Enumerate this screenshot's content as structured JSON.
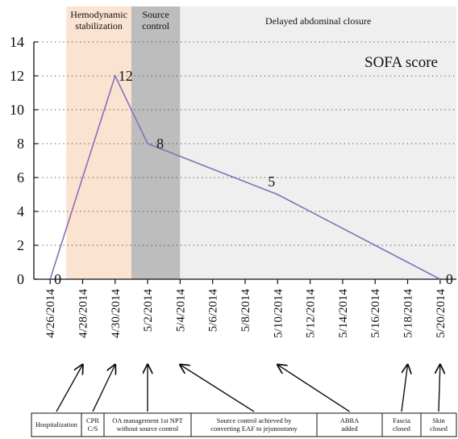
{
  "chart_data": {
    "type": "line",
    "series": [
      {
        "name": "SOFA score",
        "points": [
          {
            "x": "4/26/2014",
            "y": 0,
            "label": "0"
          },
          {
            "x": "4/30/2014",
            "y": 12,
            "label": "12"
          },
          {
            "x": "5/2/2014",
            "y": 8,
            "label": "8"
          },
          {
            "x": "5/10/2014",
            "y": 5,
            "label": "5"
          },
          {
            "x": "5/20/2014",
            "y": 0,
            "label": "0"
          }
        ]
      }
    ],
    "x_ticks": [
      "4/26/2014",
      "4/28/2014",
      "4/30/2014",
      "5/2/2014",
      "5/4/2014",
      "5/6/2014",
      "5/8/2014",
      "5/10/2014",
      "5/12/2014",
      "5/14/2014",
      "5/16/2014",
      "5/18/2014",
      "5/20/2014"
    ],
    "ylim": [
      0,
      14
    ],
    "y_ticks": [
      0,
      2,
      4,
      6,
      8,
      10,
      12,
      14
    ],
    "grid": "horizontal dotted",
    "phases": [
      {
        "lines": [
          "Hemodynamic",
          "stabilization"
        ],
        "start": "4/27/2014",
        "end": "5/1/2014",
        "color": "#fbe3d2"
      },
      {
        "lines": [
          "Source",
          "control"
        ],
        "start": "5/1/2014",
        "end": "5/4/2014",
        "color": "#bdbdbd"
      },
      {
        "lines": [
          "Delayed abdominal closure"
        ],
        "start": "5/4/2014",
        "end": "5/21/2014",
        "color": "#eeefee"
      }
    ],
    "annotations": [
      {
        "lines": [
          "Hospitalization"
        ],
        "date": "4/28/2014"
      },
      {
        "lines": [
          "CPR",
          "C/S"
        ],
        "date": "4/30/2014"
      },
      {
        "lines": [
          "OA management 1st NPT",
          "without source control"
        ],
        "date": "5/2/2014"
      },
      {
        "lines": [
          "Source control achieved by",
          "converting EAF to jejunostomy"
        ],
        "date": "5/4/2014"
      },
      {
        "lines": [
          "ABRA",
          "added"
        ],
        "date": "5/10/2014"
      },
      {
        "lines": [
          "Fascia",
          "closed"
        ],
        "date": "5/18/2014"
      },
      {
        "lines": [
          "Skin",
          "closed"
        ],
        "date": "5/20/2014"
      }
    ],
    "colors": {
      "line": "#8870b8"
    }
  }
}
